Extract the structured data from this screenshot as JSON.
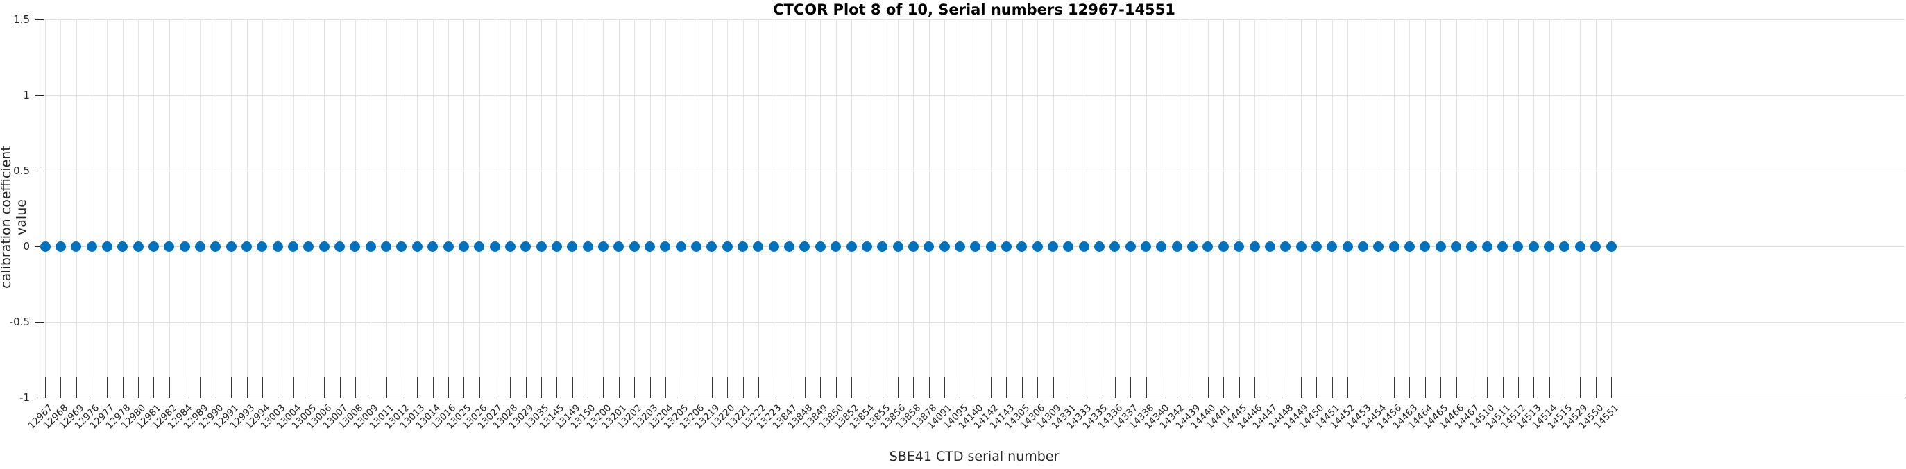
{
  "figure": {
    "title": "CTCOR Plot 8 of 10, Serial numbers 12967-14551",
    "xlabel": "SBE41 CTD serial number",
    "ylabel": "calibration coefficient value"
  },
  "chart_data": {
    "type": "scatter",
    "title": "CTCOR Plot 8 of 10, Serial numbers 12967-14551",
    "xlabel": "SBE41 CTD serial number",
    "ylabel": "calibration coefficient value",
    "marker": "filled-dot",
    "marker_color": "#0072bd",
    "y_constant": 0,
    "ylim": [
      -1,
      1.5
    ],
    "yticks": [
      1.5,
      1,
      0.5,
      0,
      -0.5,
      -1
    ],
    "ytick_labels": [
      "1.5",
      "1",
      "0.5",
      "0",
      "-0.5",
      "-1"
    ],
    "grid": "on",
    "legend": "none",
    "categories": [
      "12967",
      "12968",
      "12969",
      "12976",
      "12977",
      "12978",
      "12980",
      "12981",
      "12982",
      "12984",
      "12989",
      "12990",
      "12991",
      "12993",
      "12994",
      "13003",
      "13004",
      "13005",
      "13006",
      "13007",
      "13008",
      "13009",
      "13011",
      "13012",
      "13013",
      "13014",
      "13016",
      "13025",
      "13026",
      "13027",
      "13028",
      "13029",
      "13035",
      "13145",
      "13149",
      "13150",
      "13200",
      "13201",
      "13202",
      "13203",
      "13204",
      "13205",
      "13206",
      "13219",
      "13220",
      "13221",
      "13222",
      "13223",
      "13847",
      "13848",
      "13849",
      "13850",
      "13852",
      "13854",
      "13855",
      "13856",
      "13858",
      "13878",
      "14091",
      "14095",
      "14140",
      "14142",
      "14143",
      "14305",
      "14306",
      "14309",
      "14331",
      "14333",
      "14335",
      "14336",
      "14337",
      "14338",
      "14340",
      "14342",
      "14439",
      "14440",
      "14441",
      "14445",
      "14446",
      "14447",
      "14448",
      "14449",
      "14450",
      "14451",
      "14452",
      "14453",
      "14454",
      "14456",
      "14463",
      "14464",
      "14465",
      "14466",
      "14467",
      "14510",
      "14511",
      "14512",
      "14513",
      "14514",
      "14515",
      "14529",
      "14550",
      "14551"
    ]
  }
}
